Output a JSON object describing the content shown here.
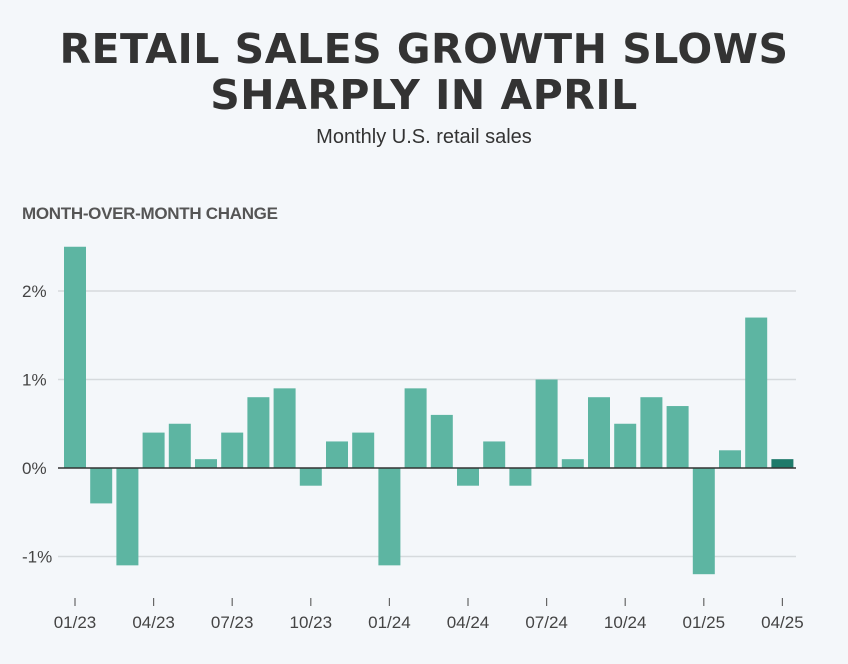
{
  "title": "RETAIL SALES GROWTH SLOWS SHARPLY IN APRIL",
  "subtitle": "Monthly U.S. retail sales",
  "chart_data": {
    "type": "bar",
    "title": "RETAIL SALES GROWTH SLOWS SHARPLY IN APRIL",
    "subtitle": "Monthly U.S. retail sales",
    "ylabel": "MONTH-OVER-MONTH CHANGE",
    "xlabel": "",
    "ylim": [
      -1.5,
      2.5
    ],
    "grid": true,
    "yticks": [
      {
        "value": 2,
        "label": "2%"
      },
      {
        "value": 1,
        "label": "1%"
      },
      {
        "value": 0,
        "label": "0%"
      },
      {
        "value": -1,
        "label": "-1%"
      }
    ],
    "xtick_labels": [
      "01/23",
      "04/23",
      "07/23",
      "10/23",
      "01/24",
      "04/24",
      "07/24",
      "10/24",
      "01/25",
      "04/25"
    ],
    "xtick_indices": [
      0,
      3,
      6,
      9,
      12,
      15,
      18,
      21,
      24,
      27
    ],
    "categories": [
      "01/23",
      "02/23",
      "03/23",
      "04/23",
      "05/23",
      "06/23",
      "07/23",
      "08/23",
      "09/23",
      "10/23",
      "11/23",
      "12/23",
      "01/24",
      "02/24",
      "03/24",
      "04/24",
      "05/24",
      "06/24",
      "07/24",
      "08/24",
      "09/24",
      "10/24",
      "11/24",
      "12/24",
      "01/25",
      "02/25",
      "03/25",
      "04/25"
    ],
    "values": [
      2.5,
      -0.4,
      -1.1,
      0.4,
      0.5,
      0.1,
      0.4,
      0.8,
      0.9,
      -0.2,
      0.3,
      0.4,
      -1.1,
      0.9,
      0.6,
      -0.2,
      0.3,
      -0.2,
      1.0,
      0.1,
      0.8,
      0.5,
      0.8,
      0.7,
      -1.2,
      0.2,
      1.7,
      0.1
    ],
    "colors": {
      "bar": "#5db5a2",
      "highlight": "#1e7a6a",
      "grid": "#d6dadd",
      "zero_line": "#333333"
    },
    "highlight_index": 27
  }
}
